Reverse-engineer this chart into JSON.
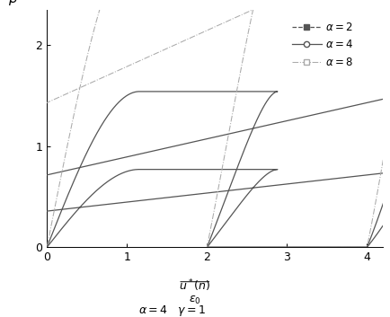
{
  "xlim": [
    0,
    4.2
  ],
  "ylim": [
    0,
    2.35
  ],
  "xticks": [
    0,
    1,
    2,
    3,
    4
  ],
  "yticks": [
    0,
    1,
    2
  ],
  "ylabel": "β",
  "background": "#ffffff",
  "alpha_values": [
    2,
    4,
    8
  ],
  "n": 4,
  "gamma": 1,
  "dark_color": "#555555",
  "light_color": "#aaaaaa"
}
